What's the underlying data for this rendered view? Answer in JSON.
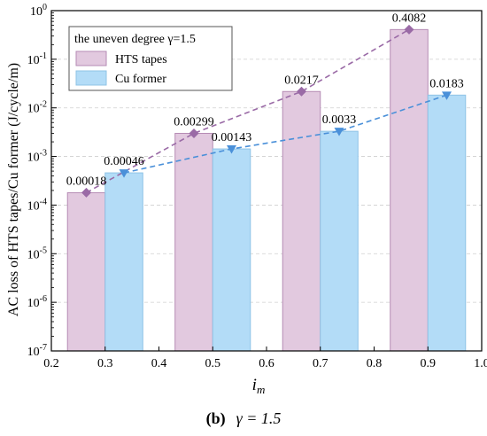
{
  "chart_data": {
    "type": "bar",
    "xlabel": "i",
    "xlabel_sub": "m",
    "ylabel": "AC loss of HTS tapes/Cu former (J/cycle/m)",
    "xlim": [
      0.2,
      1.0
    ],
    "x_ticks": [
      "0.2",
      "0.3",
      "0.4",
      "0.5",
      "0.6",
      "0.7",
      "0.8",
      "0.9",
      "1.0"
    ],
    "y_scale": "log",
    "ylim": [
      1e-07,
      1
    ],
    "y_ticks": [
      {
        "value": 1e-07,
        "exp": "-7"
      },
      {
        "value": 1e-06,
        "exp": "-6"
      },
      {
        "value": 1e-05,
        "exp": "-5"
      },
      {
        "value": 0.0001,
        "exp": "-4"
      },
      {
        "value": 0.001,
        "exp": "-3"
      },
      {
        "value": 0.01,
        "exp": "-2"
      },
      {
        "value": 0.1,
        "exp": "-1"
      },
      {
        "value": 1,
        "exp": "0"
      }
    ],
    "grid": "horizontal dashed",
    "legend": {
      "title": "the uneven degree γ=1.5",
      "placement": "top-left"
    },
    "series": [
      {
        "name": "HTS tapes",
        "color": "#e2c9df",
        "edge": "#b58bb4",
        "marker_color": "#9a6aa6",
        "marker": "diamond",
        "x": [
          0.265,
          0.465,
          0.665,
          0.865
        ],
        "values": [
          0.00018,
          0.00299,
          0.0217,
          0.4082
        ],
        "labels": [
          "0.00018",
          "0.00299",
          "0.0217",
          "0.4082"
        ]
      },
      {
        "name": "Cu former",
        "color": "#b3dcf7",
        "edge": "#8fc3e6",
        "marker_color": "#4a90d9",
        "marker": "triangle-down",
        "x": [
          0.335,
          0.535,
          0.735,
          0.935
        ],
        "values": [
          0.00046,
          0.00143,
          0.0033,
          0.0183
        ],
        "labels": [
          "0.00046",
          "0.00143",
          "0.0033",
          "0.0183"
        ]
      }
    ],
    "bar_width": 0.07
  },
  "caption": {
    "letter": "(b)",
    "text": "γ = 1.5"
  }
}
